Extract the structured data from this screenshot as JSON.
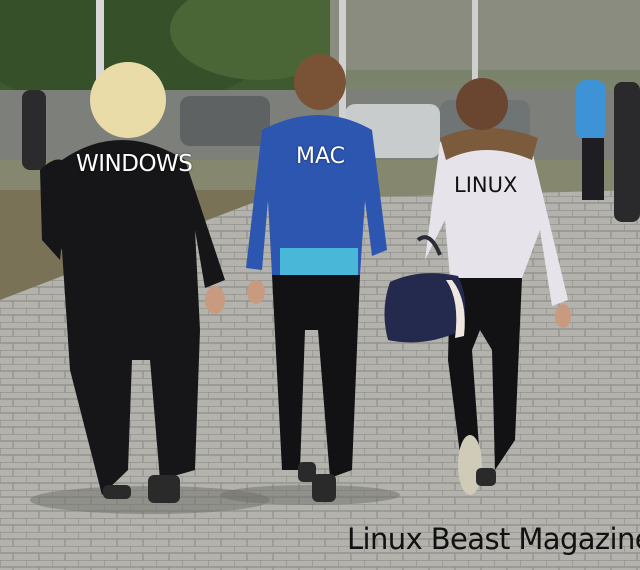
{
  "labels": {
    "person_left": "WINDOWS",
    "person_middle": "MAC",
    "person_right": "LINUX"
  },
  "watermark": "Linux Beast Magazine"
}
